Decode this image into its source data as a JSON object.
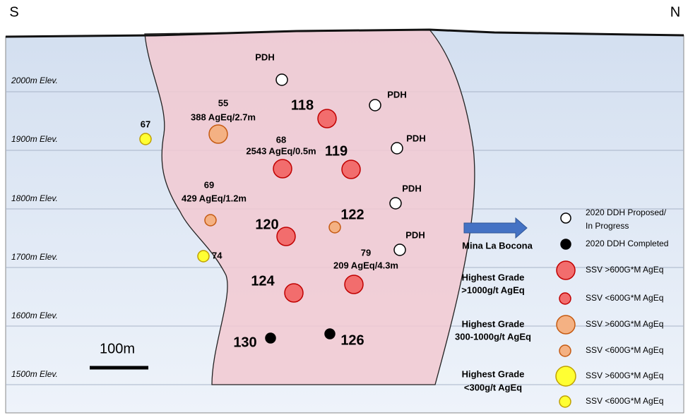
{
  "section_labels": {
    "south": "S",
    "north": "N"
  },
  "elevations": [
    "2000m Elev.",
    "1900m Elev.",
    "1800m Elev.",
    "1700m Elev.",
    "1600m Elev.",
    "1500m Elev."
  ],
  "proposed_holes": [
    "PDH",
    "PDH",
    "PDH",
    "PDH",
    "PDH"
  ],
  "holes": [
    "118",
    "119",
    "120",
    "122",
    "124",
    "130",
    "126"
  ],
  "intercepts": [
    {
      "hole": "55",
      "result": "388 AgEq/2.7m"
    },
    {
      "hole": "67"
    },
    {
      "hole": "68",
      "result": "2543 AgEq/0.5m"
    },
    {
      "hole": "69",
      "result": "429  AgEq/1.2m"
    },
    {
      "hole": "74"
    },
    {
      "hole": "79",
      "result": "209 AgEq/4.3m"
    }
  ],
  "scale_bar": "100m",
  "legend": {
    "mine": "Mina La Bocona",
    "proposed": [
      "2020 DDH Proposed/",
      "In Progress"
    ],
    "completed": "2020 DDH Completed",
    "grades": [
      {
        "title": "Highest Grade",
        "range": ">1000g/t AgEq",
        "high": "SSV >600G*M AgEq",
        "low": "SSV <600G*M AgEq"
      },
      {
        "title": "Highest Grade",
        "range": "300-1000g/t AgEq",
        "high": "SSV >600G*M AgEq",
        "low": "SSV <600G*M AgEq"
      },
      {
        "title": "Highest Grade",
        "range": "<300g/t AgEq",
        "high": "SSV >600G*M AgEq",
        "low": "SSV <600G*M AgEq"
      }
    ]
  }
}
